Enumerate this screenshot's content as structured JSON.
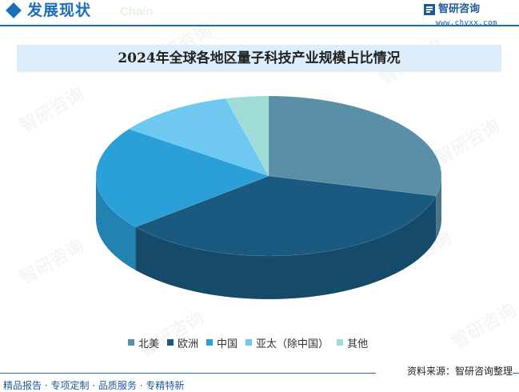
{
  "header": {
    "title": "发展现状",
    "title_en": "Chain"
  },
  "brand": {
    "name": "智研咨询",
    "url": "www.chyxx.com",
    "watermark_text": "智研咨询"
  },
  "colors": {
    "accent": "#1c6fb8",
    "title_bar": "#ddeefa"
  },
  "chart_data": {
    "type": "pie",
    "title": "2024年全球各地区量子科技产业规模占比情况",
    "style": "3d",
    "start_angle": "top, clockwise",
    "slices": [
      {
        "label": "北美",
        "value": 29,
        "color": "#5b8fa8"
      },
      {
        "label": "欧洲",
        "value": 35,
        "color": "#1b5a80"
      },
      {
        "label": "中国",
        "value": 21,
        "color": "#2a9fd8"
      },
      {
        "label": "亚太（除中国）",
        "value": 11,
        "color": "#6ec8f0"
      },
      {
        "label": "其他",
        "value": 4,
        "color": "#9fdcd8"
      }
    ],
    "legend_position": "bottom"
  },
  "footer": {
    "source": "资料来源：智研咨询整理",
    "tagline": "精品报告 · 专项定制 · 品质服务 · 专精特新"
  }
}
